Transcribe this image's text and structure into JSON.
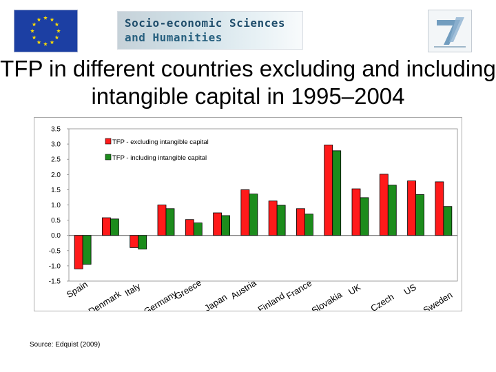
{
  "header": {
    "logo_left_icon": "eu-flag-icon",
    "banner_line1": "Socio-economic Sciences",
    "banner_line2": "and Humanities",
    "logo_right_icon": "fp7-logo-icon"
  },
  "title": "TFP in different countries excluding and including intangible capital in 1995–2004",
  "chart_data": {
    "type": "bar",
    "categories": [
      "Spain",
      "Denmark",
      "Italy",
      "Germany",
      "Greece",
      "Japan",
      "Austria",
      "Finland",
      "France",
      "Slovakia",
      "UK",
      "Czech",
      "US",
      "Sweden"
    ],
    "series": [
      {
        "name": "TFP - excluding intangible capital",
        "color": "#ff1a1a",
        "values": [
          -1.1,
          0.58,
          -0.4,
          1.0,
          0.52,
          0.74,
          1.5,
          1.13,
          0.88,
          2.97,
          1.53,
          2.01,
          1.79,
          1.76
        ]
      },
      {
        "name": "TFP - including intangible capital",
        "color": "#1c8c1c",
        "values": [
          -0.95,
          0.54,
          -0.45,
          0.88,
          0.41,
          0.65,
          1.36,
          0.99,
          0.7,
          2.78,
          1.24,
          1.65,
          1.34,
          0.95
        ]
      }
    ],
    "ylim": [
      -1.5,
      3.5
    ],
    "yticks": [
      "3.5",
      "3.0",
      "2.5",
      "2.0",
      "1.5",
      "1.0",
      "0.5",
      "0.0",
      "-0.5",
      "-1.0",
      "-1.5"
    ],
    "ytick_values": [
      3.5,
      3.0,
      2.5,
      2.0,
      1.5,
      1.0,
      0.5,
      0.0,
      -0.5,
      -1.0,
      -1.5
    ],
    "xlabel": "",
    "ylabel": "",
    "grid": false,
    "legend_position": "top-left"
  },
  "source": "Source: Edquist (2009)"
}
